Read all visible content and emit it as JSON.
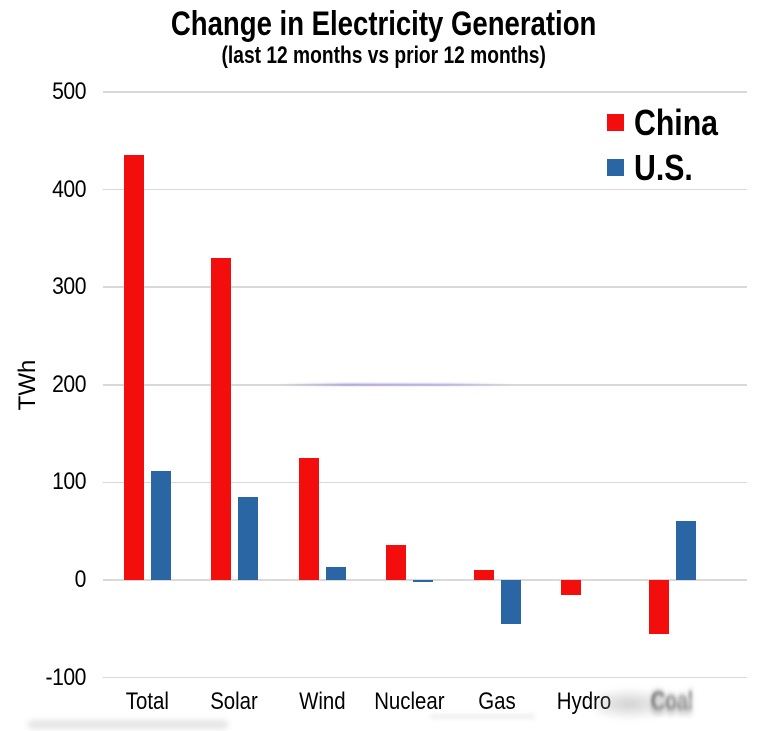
{
  "chart_data": {
    "type": "bar",
    "title": "Change in Electricity Generation",
    "subtitle": "(last 12 months vs prior 12 months)",
    "ylabel": "TWh",
    "ylim": [
      -100,
      500
    ],
    "yticks": [
      500,
      400,
      300,
      200,
      100,
      0,
      -100
    ],
    "grid": true,
    "legend_position": "top-right",
    "categories": [
      "Total",
      "Solar",
      "Wind",
      "Nuclear",
      "Gas",
      "Hydro",
      "Coal"
    ],
    "series": [
      {
        "name": "China",
        "color": "#f40d0d",
        "values": [
          435,
          330,
          125,
          36,
          10,
          -15,
          -55
        ]
      },
      {
        "name": "U.S.",
        "color": "#2b66a4",
        "values": [
          112,
          85,
          13,
          -2,
          -45,
          0,
          60
        ]
      }
    ],
    "gridline_color": "#d9d9d9"
  },
  "artifacts": {
    "obscured_x_label": "Coal",
    "bottom_left_smudge": true,
    "gridline_smear_at_value": 200
  }
}
